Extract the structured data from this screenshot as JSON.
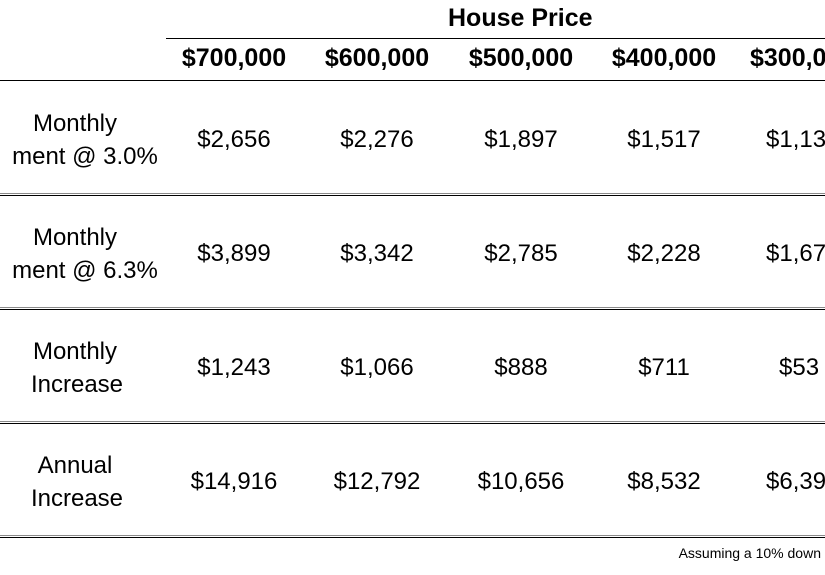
{
  "chart_data": {
    "type": "table",
    "super_header": "House Price",
    "columns": [
      "$700,000",
      "$600,000",
      "$500,000",
      "$400,000",
      "$300,0"
    ],
    "rows": [
      {
        "label_lines": [
          "Monthly",
          "ment @ 3.0%"
        ],
        "values": [
          "$2,656",
          "$2,276",
          "$1,897",
          "$1,517",
          "$1,13"
        ]
      },
      {
        "label_lines": [
          "Monthly",
          "ment @ 6.3%"
        ],
        "values": [
          "$3,899",
          "$3,342",
          "$2,785",
          "$2,228",
          "$1,67"
        ]
      },
      {
        "label_lines": [
          "Monthly",
          "Increase"
        ],
        "values": [
          "$1,243",
          "$1,066",
          "$888",
          "$711",
          "$53"
        ]
      },
      {
        "label_lines": [
          "Annual",
          "Increase"
        ],
        "values": [
          "$14,916",
          "$12,792",
          "$10,656",
          "$8,532",
          "$6,39"
        ]
      }
    ],
    "footnote": "Assuming a 10% down"
  }
}
